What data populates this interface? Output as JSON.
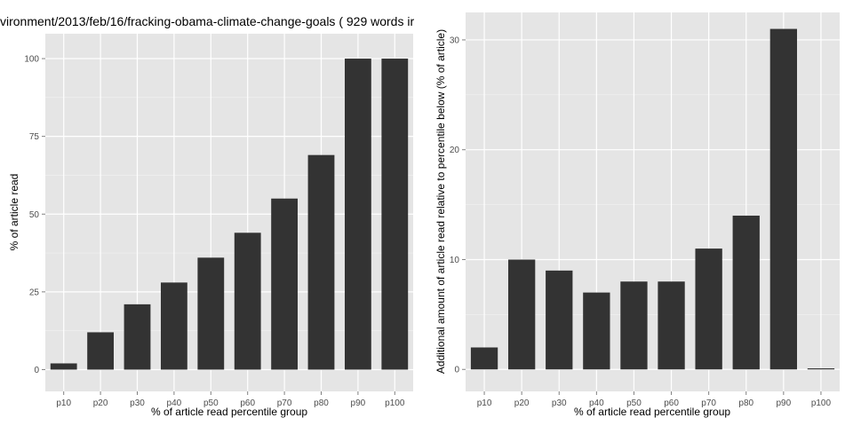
{
  "chart_data": [
    {
      "type": "bar",
      "title": "vironment/2013/feb/16/fracking-obama-climate-change-goals ( 929 words ir",
      "xlabel": "% of article read percentile group",
      "ylabel": "% of article read",
      "categories": [
        "p10",
        "p20",
        "p30",
        "p40",
        "p50",
        "p60",
        "p70",
        "p80",
        "p90",
        "p100"
      ],
      "values": [
        2,
        12,
        21,
        28,
        36,
        44,
        55,
        69,
        100,
        100
      ],
      "ylim": [
        -7,
        108
      ],
      "yticks": [
        0,
        25,
        50,
        75,
        100
      ],
      "grid": true,
      "bar_color": "#333333",
      "panel_bg": "#e5e5e5",
      "grid_color": "#ffffff"
    },
    {
      "type": "bar",
      "title": "",
      "xlabel": "% of article read percentile group",
      "ylabel": "Additional amount of article read relative to percentile below (% of article)",
      "categories": [
        "p10",
        "p20",
        "p30",
        "p40",
        "p50",
        "p60",
        "p70",
        "p80",
        "p90",
        "p100"
      ],
      "values": [
        2,
        10,
        9,
        7,
        8,
        8,
        11,
        14,
        31,
        0
      ],
      "ylim": [
        -2,
        32.5
      ],
      "yticks": [
        0,
        10,
        20,
        30
      ],
      "grid": true,
      "bar_color": "#333333",
      "panel_bg": "#e5e5e5",
      "grid_color": "#ffffff"
    }
  ]
}
